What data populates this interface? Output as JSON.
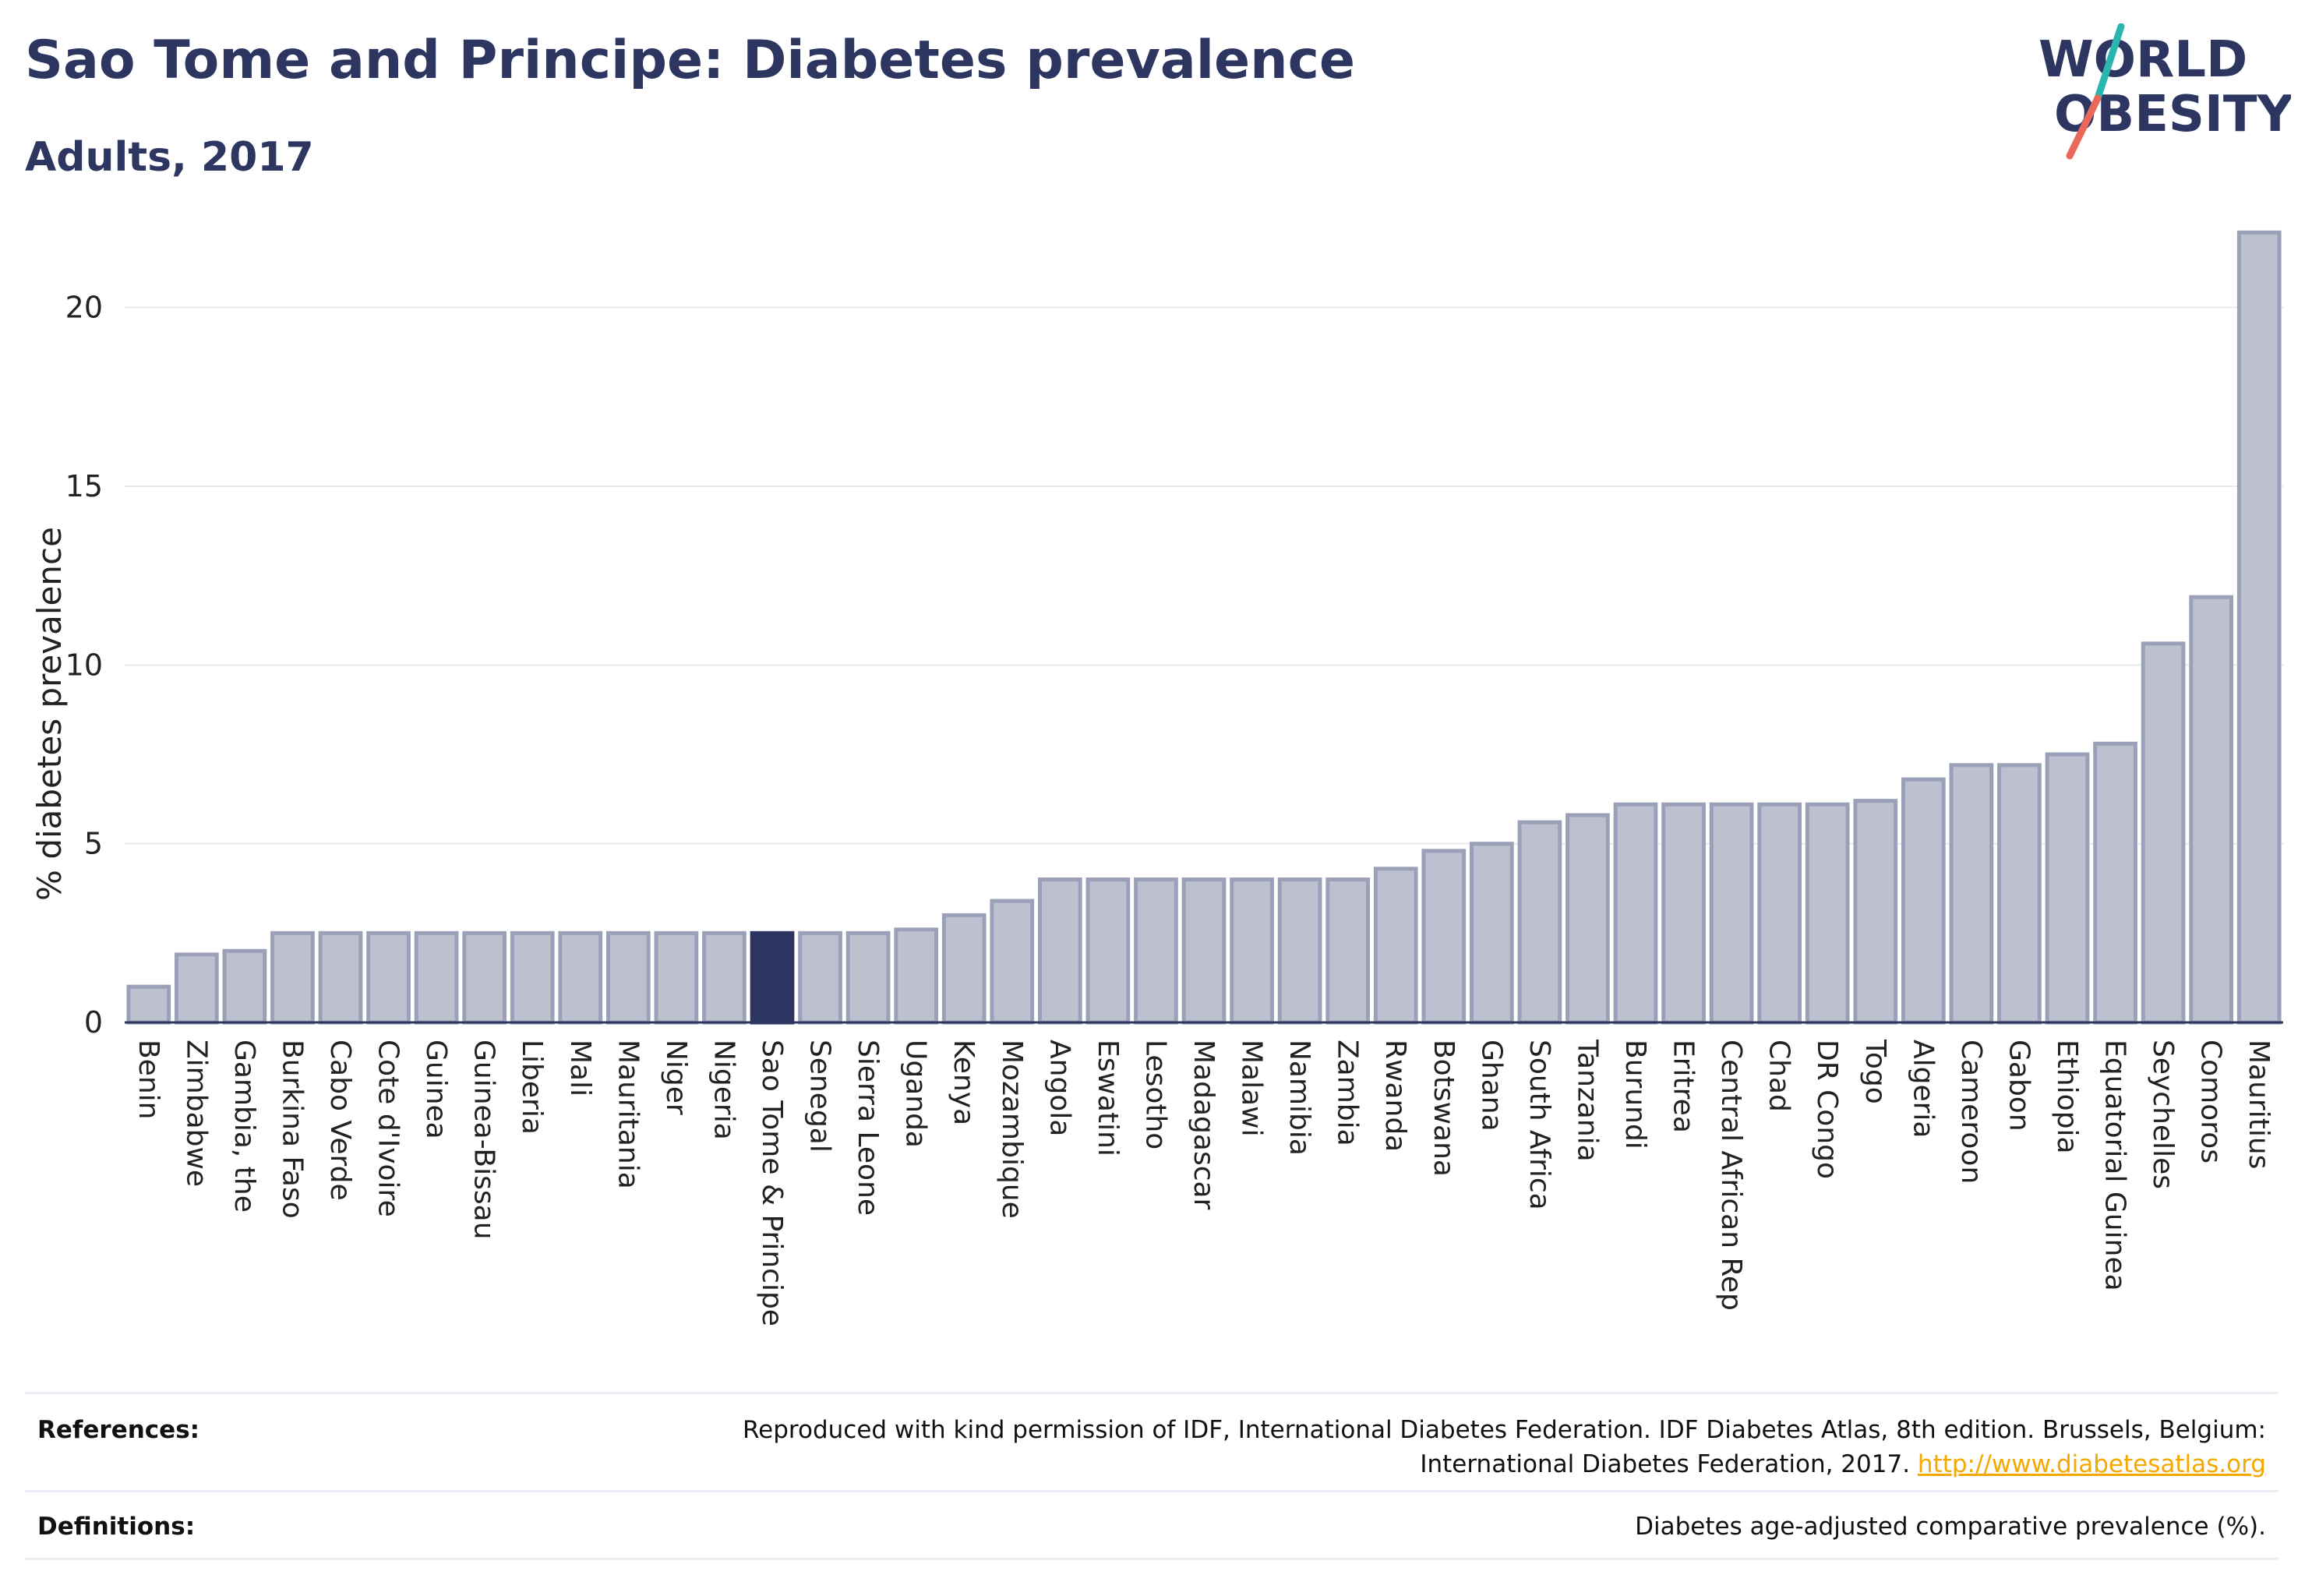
{
  "header": {
    "title": "Sao Tome and Principe: Diabetes prevalence",
    "subtitle": "Adults, 2017"
  },
  "logo": {
    "line1": "WORLD",
    "line2": "OBESITY",
    "colors": {
      "text": "#2d3561",
      "slash_top": "#2ab5b0",
      "slash_bottom": "#e8685a"
    }
  },
  "chart_data": {
    "type": "bar",
    "ylabel": "% diabetes prevalence",
    "xlabel": "",
    "ylim": [
      0,
      22.5
    ],
    "yticks": [
      0,
      5,
      10,
      15,
      20
    ],
    "grid": true,
    "highlight": "Sao Tome & Principe",
    "colors": {
      "bar": "#bcc0cf",
      "bar_edge": "#9aa0b8",
      "highlight": "#2d3561",
      "grid": "#e6e8ef",
      "axis": "#2d3561"
    },
    "categories": [
      "Benin",
      "Zimbabwe",
      "Gambia, the",
      "Burkina Faso",
      "Cabo Verde",
      "Cote d'Ivoire",
      "Guinea",
      "Guinea-Bissau",
      "Liberia",
      "Mali",
      "Mauritania",
      "Niger",
      "Nigeria",
      "Sao Tome & Principe",
      "Senegal",
      "Sierra Leone",
      "Uganda",
      "Kenya",
      "Mozambique",
      "Angola",
      "Eswatini",
      "Lesotho",
      "Madagascar",
      "Malawi",
      "Namibia",
      "Zambia",
      "Rwanda",
      "Botswana",
      "Ghana",
      "South Africa",
      "Tanzania",
      "Burundi",
      "Eritrea",
      "Central African Rep",
      "Chad",
      "DR Congo",
      "Togo",
      "Algeria",
      "Cameroon",
      "Gabon",
      "Ethiopia",
      "Equatorial Guinea",
      "Seychelles",
      "Comoros",
      "Mauritius"
    ],
    "values": [
      1.0,
      1.9,
      2.0,
      2.5,
      2.5,
      2.5,
      2.5,
      2.5,
      2.5,
      2.5,
      2.5,
      2.5,
      2.5,
      2.5,
      2.5,
      2.5,
      2.6,
      3.0,
      3.4,
      4.0,
      4.0,
      4.0,
      4.0,
      4.0,
      4.0,
      4.0,
      4.3,
      4.8,
      5.0,
      5.6,
      5.8,
      6.1,
      6.1,
      6.1,
      6.1,
      6.1,
      6.2,
      6.8,
      7.2,
      7.2,
      7.5,
      7.8,
      10.6,
      11.9,
      22.1
    ]
  },
  "footer": {
    "references_label": "References:",
    "references_line1": "Reproduced with kind permission of IDF, International Diabetes Federation. IDF Diabetes Atlas, 8th edition. Brussels, Belgium:",
    "references_line2": "International Diabetes Federation, 2017.",
    "references_link": "http://www.diabetesatlas.org",
    "definitions_label": "Definitions:",
    "definitions_text": "Diabetes age-adjusted comparative prevalence (%).",
    "link_color": "#f5a800"
  }
}
